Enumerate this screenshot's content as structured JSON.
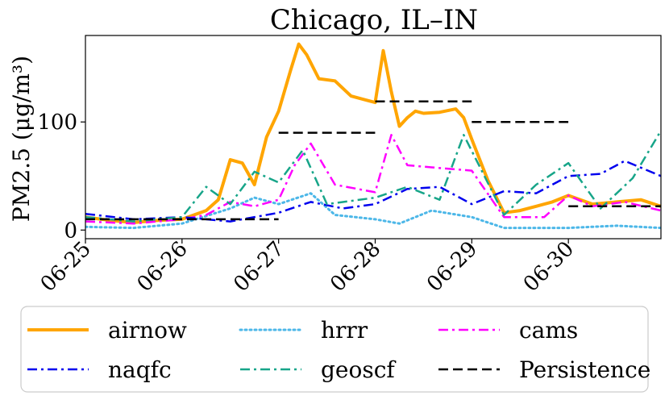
{
  "chart_data": {
    "type": "line",
    "title": "Chicago, IL–IN",
    "ylabel": "PM2.5 (μg/m³)",
    "xlabel": "",
    "xlim": [
      "06-25 00:00",
      "06-30 23:00"
    ],
    "ylim": [
      -8,
      180
    ],
    "x_ticks": [
      "06-25",
      "06-26",
      "06-27",
      "06-28",
      "06-29",
      "06-30"
    ],
    "y_ticks": [
      0,
      100
    ],
    "grid": false,
    "legend": {
      "placement": "bottom",
      "columns": 3
    },
    "series": [
      {
        "name": "airnow",
        "color": "#FFA500",
        "style": "solid",
        "x": [
          "06-25 00:00",
          "06-25 06:00",
          "06-25 12:00",
          "06-25 18:00",
          "06-26 00:00",
          "06-26 06:00",
          "06-26 09:00",
          "06-26 12:00",
          "06-26 15:00",
          "06-26 18:00",
          "06-26 21:00",
          "06-27 00:00",
          "06-27 03:00",
          "06-27 05:00",
          "06-27 07:00",
          "06-27 10:00",
          "06-27 14:00",
          "06-27 18:00",
          "06-27 22:00",
          "06-28 00:00",
          "06-28 02:00",
          "06-28 04:00",
          "06-28 06:00",
          "06-28 08:00",
          "06-28 10:00",
          "06-28 12:00",
          "06-28 16:00",
          "06-28 20:00",
          "06-28 22:00",
          "06-29 00:00",
          "06-29 04:00",
          "06-29 08:00",
          "06-29 12:00",
          "06-29 16:00",
          "06-29 20:00",
          "06-30 00:00",
          "06-30 06:00",
          "06-30 12:00",
          "06-30 18:00",
          "06-30 23:00"
        ],
        "values": [
          12,
          9,
          7,
          9,
          10,
          18,
          28,
          65,
          62,
          42,
          86,
          110,
          148,
          172,
          162,
          140,
          138,
          124,
          120,
          118,
          166,
          128,
          96,
          104,
          110,
          108,
          109,
          112,
          104,
          84,
          46,
          16,
          18,
          22,
          26,
          32,
          24,
          26,
          28,
          22
        ]
      },
      {
        "name": "hrrr",
        "color": "#4CB7E8",
        "style": "dotted",
        "x": [
          "06-25 00:00",
          "06-25 12:00",
          "06-26 00:00",
          "06-26 12:00",
          "06-26 18:00",
          "06-27 00:00",
          "06-27 08:00",
          "06-27 14:00",
          "06-28 00:00",
          "06-28 06:00",
          "06-28 14:00",
          "06-29 00:00",
          "06-29 08:00",
          "06-30 00:00",
          "06-30 12:00",
          "06-30 23:00"
        ],
        "values": [
          3,
          2,
          6,
          20,
          30,
          24,
          34,
          14,
          10,
          6,
          18,
          12,
          2,
          2,
          4,
          2
        ]
      },
      {
        "name": "cams",
        "color": "#FF00FF",
        "style": "dashdot",
        "x": [
          "06-25 00:00",
          "06-25 12:00",
          "06-26 00:00",
          "06-26 06:00",
          "06-26 12:00",
          "06-26 18:00",
          "06-27 00:00",
          "06-27 04:00",
          "06-27 08:00",
          "06-27 14:00",
          "06-28 00:00",
          "06-28 04:00",
          "06-28 08:00",
          "06-28 14:00",
          "06-29 00:00",
          "06-29 08:00",
          "06-29 18:00",
          "06-30 00:00",
          "06-30 06:00",
          "06-30 14:00",
          "06-30 23:00"
        ],
        "values": [
          8,
          6,
          10,
          14,
          26,
          22,
          28,
          60,
          80,
          42,
          35,
          88,
          60,
          58,
          55,
          12,
          12,
          32,
          22,
          26,
          18
        ]
      },
      {
        "name": "naqfc",
        "color": "#0000EE",
        "style": "dashdot",
        "x": [
          "06-25 00:00",
          "06-25 12:00",
          "06-26 00:00",
          "06-26 12:00",
          "06-27 00:00",
          "06-27 08:00",
          "06-27 16:00",
          "06-28 00:00",
          "06-28 08:00",
          "06-28 16:00",
          "06-29 00:00",
          "06-29 08:00",
          "06-29 16:00",
          "06-30 00:00",
          "06-30 08:00",
          "06-30 14:00",
          "06-30 23:00"
        ],
        "values": [
          15,
          10,
          12,
          8,
          16,
          26,
          20,
          24,
          38,
          40,
          24,
          36,
          34,
          50,
          52,
          64,
          50
        ]
      },
      {
        "name": "geoscf",
        "color": "#17A589",
        "style": "dashdot",
        "x": [
          "06-25 00:00",
          "06-25 12:00",
          "06-26 00:00",
          "06-26 06:00",
          "06-26 12:00",
          "06-26 18:00",
          "06-27 00:00",
          "06-27 06:00",
          "06-27 12:00",
          "06-28 00:00",
          "06-28 08:00",
          "06-28 16:00",
          "06-28 22:00",
          "06-29 08:00",
          "06-29 16:00",
          "06-30 00:00",
          "06-30 08:00",
          "06-30 16:00",
          "06-30 23:00"
        ],
        "values": [
          12,
          8,
          12,
          40,
          24,
          54,
          44,
          74,
          24,
          30,
          40,
          28,
          88,
          14,
          42,
          62,
          20,
          48,
          92
        ]
      },
      {
        "name": "Persistence",
        "color": "#000000",
        "style": "dashed",
        "x": [
          "06-25 00:00",
          "06-26 23:59",
          "06-27 00:00",
          "06-27 23:59",
          "06-28 00:00",
          "06-28 23:59",
          "06-29 00:00",
          "06-29 23:59",
          "06-30 00:00",
          "06-30 23:00"
        ],
        "values": [
          10,
          10,
          90,
          90,
          119,
          119,
          100,
          100,
          22,
          22
        ],
        "segments": [
          [
            0,
            1
          ],
          [
            2,
            3
          ],
          [
            4,
            5
          ],
          [
            6,
            7
          ],
          [
            8,
            9
          ]
        ]
      }
    ],
    "legend_order": [
      "airnow",
      "hrrr",
      "cams",
      "naqfc",
      "geoscf",
      "Persistence"
    ]
  }
}
